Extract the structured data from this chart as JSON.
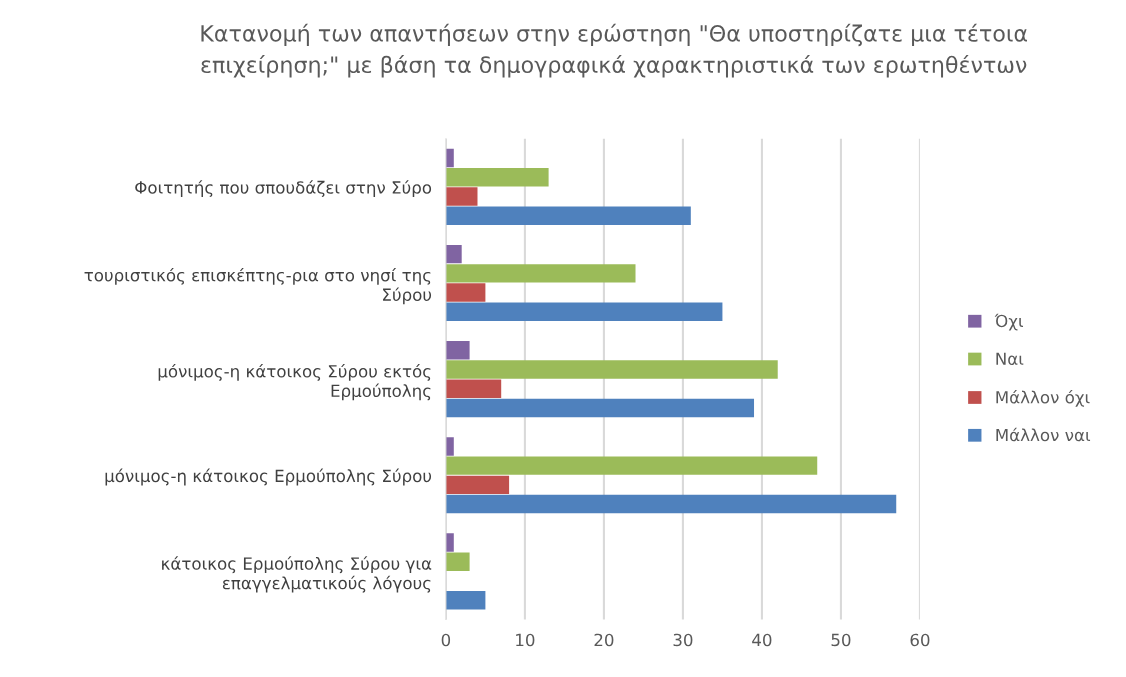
{
  "chart_data": {
    "type": "bar",
    "orientation": "horizontal",
    "title": "Κατανομή των απαντήσεων στην ερώστηση \"Θα υποστηρίζατε μια τέτοια\nεπιχείρηση;\" με βάση τα δημογραφικά χαρακτηριστικά των ερωτηθέντων",
    "categories": [
      "Φοιτητής που σπουδάζει στην Σύρο",
      "τουριστικός επισκέπτης-ρια στο νησί της\nΣύρου",
      "μόνιμος-η κάτοικος Σύρου εκτός\nΕρμούπολης",
      "μόνιμος-η κάτοικος Ερμούπολης Σύρου",
      "κάτοικος Ερμούπολης Σύρου για\nεπαγγελματικούς λόγους"
    ],
    "series": [
      {
        "name": "Μάλλον ναι",
        "color": "#4f81bd",
        "values": [
          31,
          35,
          39,
          57,
          5
        ]
      },
      {
        "name": "Μάλλον όχι",
        "color": "#c0504d",
        "values": [
          4,
          5,
          7,
          8,
          0
        ]
      },
      {
        "name": "Ναι",
        "color": "#9bbb59",
        "values": [
          13,
          24,
          42,
          47,
          3
        ]
      },
      {
        "name": "Όχι",
        "color": "#8064a2",
        "values": [
          1,
          2,
          3,
          1,
          1
        ]
      }
    ],
    "xlim": [
      0,
      60
    ],
    "xticks": [
      0,
      10,
      20,
      30,
      40,
      50,
      60
    ],
    "grid": "x",
    "legend": "right"
  }
}
